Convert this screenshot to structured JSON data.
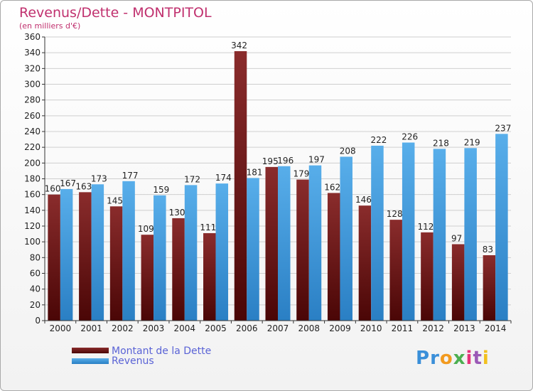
{
  "chart_data": {
    "type": "bar",
    "title": "Revenus/Dette - MONTPITOL",
    "subtitle": "(en milliers d'€)",
    "categories": [
      "2000",
      "2001",
      "2002",
      "2003",
      "2004",
      "2005",
      "2006",
      "2007",
      "2008",
      "2009",
      "2010",
      "2011",
      "2012",
      "2013",
      "2014"
    ],
    "series": [
      {
        "name": "Montant de la Dette",
        "color": "#7a1a1a",
        "values": [
          160,
          163,
          145,
          109,
          130,
          111,
          342,
          195,
          179,
          162,
          146,
          128,
          112,
          97,
          83
        ]
      },
      {
        "name": "Revenus",
        "color": "#3f9be0",
        "values": [
          167,
          173,
          177,
          159,
          172,
          174,
          181,
          196,
          197,
          208,
          222,
          226,
          218,
          219,
          237
        ]
      }
    ],
    "ylim": [
      0,
      360
    ],
    "ytick_step": 20,
    "grid": true,
    "legend_position": "bottom-left",
    "data_labels": true
  },
  "brand": {
    "logo_letters": [
      "P",
      "r",
      "o",
      "x",
      "i",
      "t",
      "i"
    ],
    "logo_colors": [
      "#3a8fd9",
      "#3a8fd9",
      "#f29a1f",
      "#4caf50",
      "#e6337a",
      "#9b59b6",
      "#f2c01f"
    ]
  }
}
